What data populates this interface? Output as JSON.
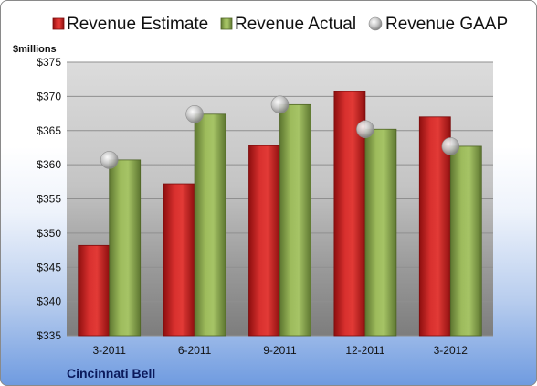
{
  "chart_data": {
    "type": "bar",
    "ylabel": "$millions",
    "ylim": [
      335,
      375
    ],
    "yticks": [
      "$335",
      "$340",
      "$345",
      "$350",
      "$355",
      "$360",
      "$365",
      "$370",
      "$375"
    ],
    "categories": [
      "3-2011",
      "6-2011",
      "9-2011",
      "12-2011",
      "3-2012"
    ],
    "series": [
      {
        "name": "Revenue Estimate",
        "kind": "bar",
        "color": "#c8201f",
        "values": [
          348.2,
          357.2,
          362.8,
          370.7,
          367.0
        ]
      },
      {
        "name": "Revenue Actual",
        "kind": "bar",
        "color": "#8bab4a",
        "values": [
          360.7,
          367.4,
          368.8,
          365.2,
          362.7
        ]
      },
      {
        "name": "Revenue GAAP",
        "kind": "marker",
        "color": "#bfbfbf",
        "values": [
          360.7,
          367.4,
          368.8,
          365.2,
          362.7
        ]
      }
    ],
    "legend_position": "top",
    "grid": true
  },
  "company": "Cincinnati Bell"
}
